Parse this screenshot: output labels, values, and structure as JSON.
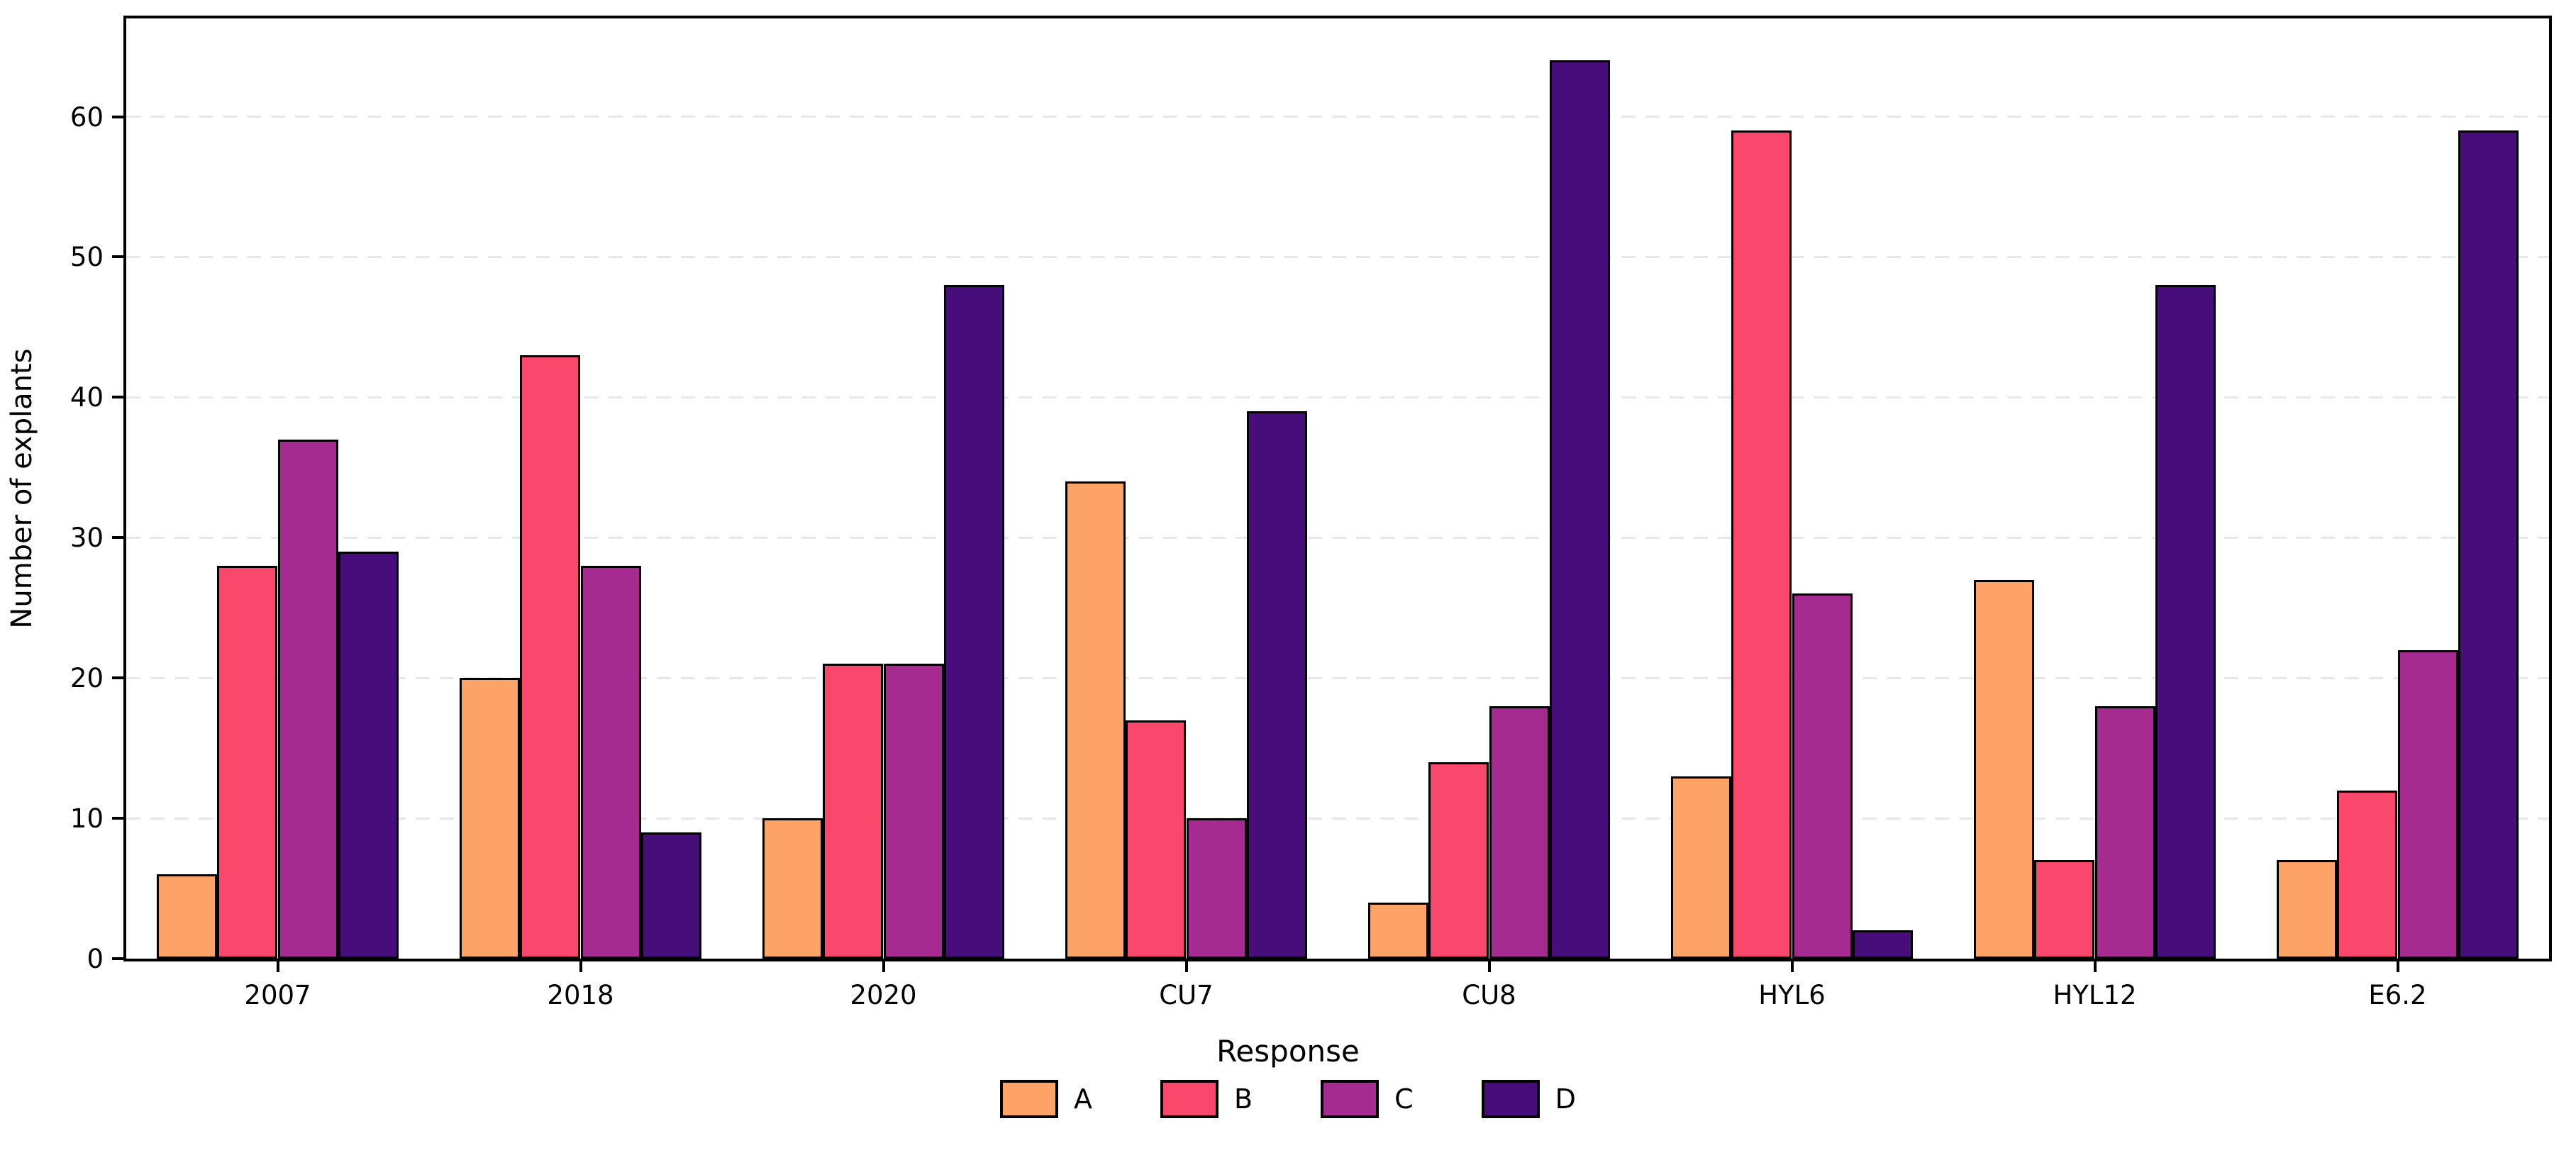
{
  "chart_data": {
    "type": "bar",
    "title": "",
    "ylabel": "Number of explants",
    "xlabel": "",
    "legend_title": "Response",
    "legend_position": "bottom",
    "grid": true,
    "background": "#ffffff",
    "bar_edge_color": "#000000",
    "gridline_color": "#e7e7e7",
    "categories": [
      "2007",
      "2018",
      "2020",
      "CU7",
      "CU8",
      "HYL6",
      "HYL12",
      "E6.2"
    ],
    "series": [
      {
        "name": "A",
        "color": "#FCA368",
        "values": [
          6,
          20,
          10,
          34,
          4,
          13,
          27,
          7
        ]
      },
      {
        "name": "B",
        "color": "#F9486C",
        "values": [
          28,
          43,
          21,
          17,
          14,
          59,
          7,
          12
        ]
      },
      {
        "name": "C",
        "color": "#A62B90",
        "values": [
          37,
          28,
          21,
          10,
          18,
          26,
          18,
          22
        ]
      },
      {
        "name": "D",
        "color": "#470E7B",
        "values": [
          29,
          9,
          48,
          39,
          64,
          2,
          48,
          59
        ]
      }
    ],
    "yticks": [
      0,
      10,
      20,
      30,
      40,
      50,
      60
    ],
    "ylim": [
      0,
      67
    ]
  }
}
